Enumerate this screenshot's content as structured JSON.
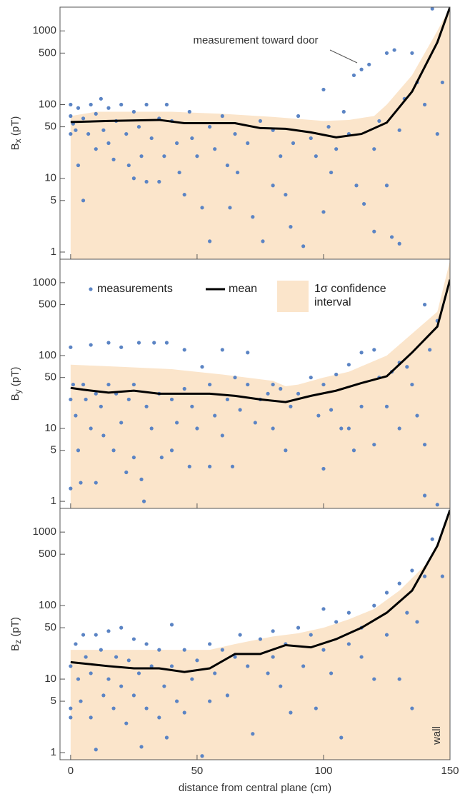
{
  "chart_data": [
    {
      "type": "scatter",
      "ylabel": "B",
      "ylabel_sub": "x",
      "ylabel_unit": "(pT)",
      "log_y": true,
      "xlim": [
        -4.2,
        150
      ],
      "xticks": [
        0,
        50,
        100,
        150
      ],
      "xtick_labels": false,
      "ylim": [
        0.8,
        2100
      ],
      "yticks": [
        1,
        5,
        10,
        50,
        100,
        500,
        1000
      ],
      "annotation": "measurement toward door",
      "series": [
        {
          "type": "band",
          "color": "#fbe5cb",
          "x": [
            0,
            10,
            40,
            60,
            80,
            100,
            110,
            120,
            125,
            135,
            145,
            150
          ],
          "values": [
            70,
            80,
            80,
            75,
            68,
            60,
            62,
            70,
            100,
            250,
            1000,
            2100
          ]
        },
        {
          "type": "scatter",
          "color": "#5b84c4",
          "x": [
            0,
            0,
            0,
            1,
            2,
            3,
            3,
            5,
            5,
            7,
            8,
            10,
            10,
            12,
            13,
            15,
            15,
            17,
            18,
            20,
            22,
            23,
            25,
            25,
            27,
            28,
            30,
            30,
            32,
            35,
            35,
            37,
            38,
            40,
            42,
            43,
            45,
            47,
            48,
            50,
            52,
            55,
            55,
            57,
            60,
            62,
            63,
            65,
            66,
            70,
            72,
            75,
            76,
            80,
            80,
            83,
            85,
            87,
            88,
            90,
            92,
            95,
            97,
            100,
            100,
            102,
            103,
            105,
            108,
            110,
            112,
            113,
            115,
            116,
            118,
            120,
            120,
            122,
            125,
            125,
            127,
            128,
            130,
            130,
            132,
            135,
            137,
            140,
            143,
            145,
            147
          ],
          "values": [
            100,
            70,
            40,
            55,
            45,
            15,
            90,
            5,
            65,
            40,
            100,
            75,
            25,
            120,
            45,
            30,
            90,
            18,
            60,
            100,
            40,
            15,
            80,
            10,
            50,
            20,
            100,
            9,
            35,
            65,
            9,
            20,
            100,
            60,
            30,
            12,
            6,
            80,
            35,
            20,
            4,
            50,
            1.4,
            25,
            70,
            15,
            4,
            40,
            12,
            30,
            3,
            60,
            1.4,
            45,
            8,
            20,
            6,
            2.2,
            30,
            70,
            1.2,
            35,
            20,
            3.5,
            160,
            50,
            12,
            25,
            80,
            40,
            250,
            8,
            300,
            4.5,
            350,
            1.9,
            25,
            60,
            500,
            8,
            1.6,
            550,
            1.3,
            45,
            120,
            500,
            200,
            100,
            2000,
            40,
            200
          ]
        },
        {
          "type": "line",
          "color": "#000000",
          "x": [
            0,
            15,
            35,
            45,
            65,
            75,
            85,
            95,
            105,
            115,
            125,
            135,
            145,
            150
          ],
          "values": [
            58,
            60,
            62,
            56,
            56,
            48,
            47,
            42,
            36,
            40,
            57,
            150,
            700,
            2100
          ]
        }
      ]
    },
    {
      "type": "scatter",
      "ylabel": "B",
      "ylabel_sub": "y",
      "ylabel_unit": "(pT)",
      "log_y": true,
      "xlim": [
        -4.2,
        150
      ],
      "xticks": [
        0,
        50,
        100,
        150
      ],
      "xtick_labels": false,
      "ylim": [
        0.8,
        2100
      ],
      "yticks": [
        1,
        5,
        10,
        50,
        100,
        500,
        1000
      ],
      "legend": "upper left",
      "series": [
        {
          "name": "1σ confidence interval",
          "type": "band",
          "color": "#fbe5cb",
          "x": [
            0,
            20,
            40,
            60,
            80,
            85,
            90,
            100,
            110,
            125,
            135,
            145,
            150
          ],
          "values": [
            75,
            70,
            65,
            55,
            45,
            38,
            40,
            50,
            60,
            100,
            200,
            400,
            2000
          ]
        },
        {
          "name": "measurements",
          "type": "scatter",
          "color": "#5b84c4",
          "x": [
            0,
            0,
            0,
            1,
            2,
            3,
            4,
            5,
            6,
            8,
            8,
            10,
            10,
            12,
            13,
            15,
            15,
            17,
            18,
            20,
            20,
            22,
            23,
            25,
            25,
            27,
            28,
            29,
            30,
            32,
            33,
            35,
            36,
            38,
            40,
            40,
            42,
            45,
            45,
            47,
            48,
            50,
            52,
            55,
            55,
            57,
            60,
            60,
            62,
            64,
            65,
            67,
            70,
            70,
            73,
            75,
            78,
            80,
            80,
            83,
            85,
            87,
            90,
            95,
            98,
            100,
            100,
            103,
            105,
            107,
            110,
            110,
            112,
            115,
            115,
            120,
            120,
            122,
            125,
            127,
            130,
            130,
            133,
            135,
            137,
            140,
            140,
            140,
            142,
            145,
            145
          ],
          "values": [
            130,
            25,
            1.5,
            40,
            15,
            5,
            1.8,
            40,
            25,
            140,
            10,
            1.8,
            30,
            20,
            8,
            150,
            40,
            5,
            30,
            130,
            12,
            2.5,
            25,
            40,
            4,
            150,
            2,
            1,
            20,
            10,
            150,
            30,
            4,
            150,
            5,
            25,
            12,
            120,
            35,
            3,
            20,
            10,
            70,
            3,
            40,
            15,
            120,
            8,
            25,
            3,
            50,
            18,
            110,
            40,
            12,
            25,
            30,
            10,
            40,
            35,
            5,
            20,
            30,
            50,
            15,
            2.8,
            40,
            18,
            55,
            10,
            75,
            10,
            5,
            110,
            20,
            6,
            120,
            50,
            20,
            60,
            10,
            80,
            70,
            40,
            15,
            500,
            6,
            1.2,
            120,
            300,
            0.9
          ]
        },
        {
          "name": "mean",
          "type": "line",
          "color": "#000000",
          "x": [
            0,
            5,
            15,
            25,
            35,
            45,
            55,
            65,
            75,
            85,
            95,
            105,
            115,
            125,
            135,
            145,
            150
          ],
          "values": [
            36,
            34,
            31,
            33,
            30,
            30,
            30,
            28,
            25,
            23,
            28,
            33,
            42,
            52,
            110,
            250,
            1100
          ]
        }
      ]
    },
    {
      "type": "scatter",
      "ylabel": "B",
      "ylabel_sub": "z",
      "ylabel_unit": "(pT)",
      "log_y": true,
      "xlabel": "distance from central plane (cm)",
      "xlim": [
        -4.2,
        150
      ],
      "xticks": [
        0,
        50,
        100,
        150
      ],
      "xtick_labels": true,
      "ylim": [
        0.8,
        2100
      ],
      "yticks": [
        1,
        5,
        10,
        50,
        100,
        500,
        1000
      ],
      "annotation": "wall",
      "series": [
        {
          "type": "band",
          "color": "#fbe5cb",
          "x": [
            0,
            20,
            40,
            55,
            65,
            80,
            90,
            100,
            110,
            120,
            130,
            140,
            145,
            150
          ],
          "values": [
            25,
            25,
            25,
            25,
            30,
            38,
            42,
            50,
            65,
            90,
            160,
            350,
            700,
            2000
          ]
        },
        {
          "type": "scatter",
          "color": "#5b84c4",
          "x": [
            0,
            0,
            0,
            2,
            3,
            4,
            5,
            6,
            8,
            8,
            10,
            10,
            12,
            13,
            15,
            15,
            17,
            18,
            20,
            20,
            22,
            23,
            25,
            25,
            27,
            28,
            30,
            30,
            32,
            35,
            35,
            37,
            38,
            40,
            40,
            42,
            45,
            45,
            48,
            50,
            52,
            55,
            55,
            57,
            60,
            62,
            65,
            67,
            70,
            72,
            75,
            78,
            80,
            80,
            83,
            85,
            87,
            90,
            92,
            95,
            97,
            100,
            100,
            103,
            105,
            107,
            110,
            110,
            115,
            115,
            120,
            120,
            125,
            125,
            130,
            130,
            133,
            135,
            135,
            137,
            140,
            143,
            147
          ],
          "values": [
            15,
            4,
            3,
            30,
            10,
            5,
            40,
            20,
            12,
            3,
            40,
            1.1,
            25,
            6,
            45,
            10,
            4,
            20,
            50,
            8,
            2.5,
            18,
            35,
            6,
            12,
            1.2,
            30,
            4,
            15,
            25,
            3,
            8,
            1.6,
            55,
            15,
            5,
            25,
            3.5,
            10,
            18,
            0.9,
            30,
            5,
            12,
            25,
            6,
            20,
            40,
            15,
            1.8,
            35,
            12,
            45,
            20,
            8,
            30,
            3.5,
            50,
            15,
            40,
            4,
            90,
            25,
            12,
            60,
            1.6,
            30,
            80,
            50,
            20,
            100,
            10,
            150,
            40,
            200,
            10,
            80,
            300,
            4,
            60,
            250,
            800,
            250
          ]
        },
        {
          "type": "line",
          "color": "#000000",
          "x": [
            0,
            15,
            25,
            35,
            45,
            55,
            65,
            75,
            85,
            95,
            105,
            115,
            125,
            135,
            145,
            150
          ],
          "values": [
            17,
            15,
            14,
            14,
            12.5,
            14,
            22,
            22,
            29,
            27,
            35,
            50,
            80,
            160,
            650,
            2000
          ]
        }
      ]
    }
  ]
}
